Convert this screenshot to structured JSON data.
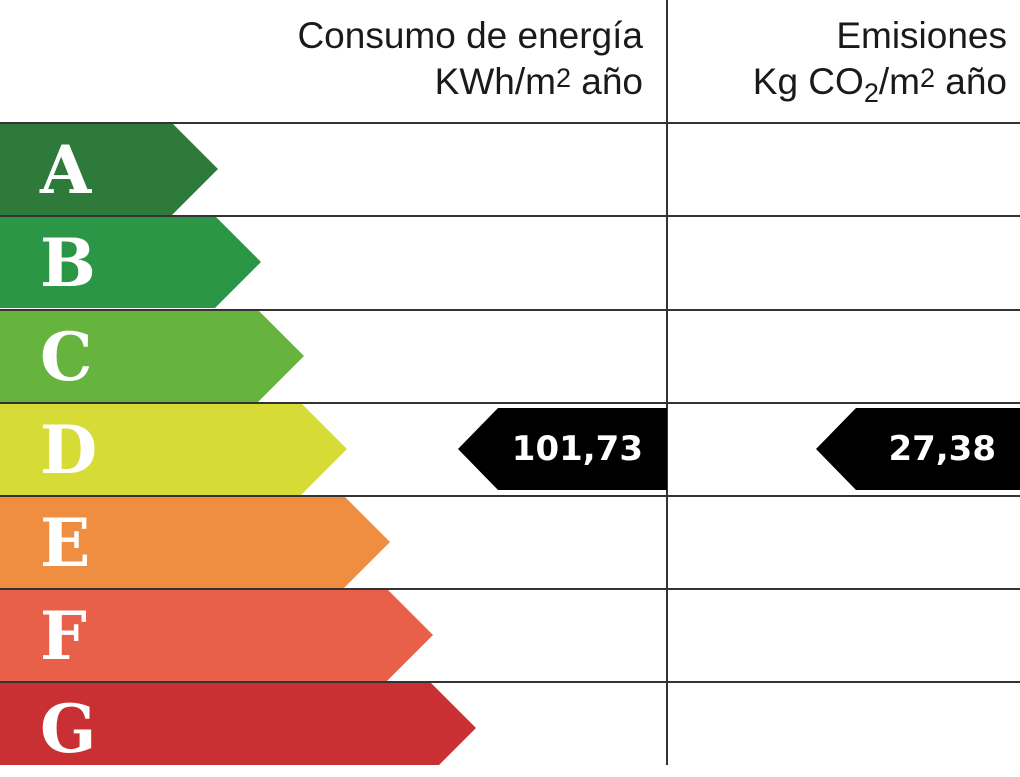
{
  "header": {
    "energy_title": "Consumo de energía",
    "energy_unit_prefix": "KWh/m",
    "energy_unit_sup": "2",
    "energy_unit_suffix": " año",
    "emissions_title": "Emisiones",
    "emissions_unit_prefix": "Kg CO",
    "emissions_unit_sub": "2",
    "emissions_unit_mid": "/m",
    "emissions_unit_sup": "2",
    "emissions_unit_suffix": " año"
  },
  "bands": [
    {
      "letter": "A",
      "color": "#2d7a3a"
    },
    {
      "letter": "B",
      "color": "#2a9646"
    },
    {
      "letter": "C",
      "color": "#66b33e"
    },
    {
      "letter": "D",
      "color": "#d7db35"
    },
    {
      "letter": "E",
      "color": "#ef8d40"
    },
    {
      "letter": "F",
      "color": "#e85f4a"
    },
    {
      "letter": "G",
      "color": "#c93034"
    }
  ],
  "rating": {
    "energy_value": "101,73",
    "emissions_value": "27,38",
    "class": "D"
  },
  "chart_data": {
    "type": "table",
    "title": "Energy efficiency rating",
    "columns": [
      "Consumo de energía KWh/m2 año",
      "Emisiones Kg CO2/m2 año"
    ],
    "categories": [
      "A",
      "B",
      "C",
      "D",
      "E",
      "F",
      "G"
    ],
    "category_colors": [
      "#2d7a3a",
      "#2a9646",
      "#66b33e",
      "#d7db35",
      "#ef8d40",
      "#e85f4a",
      "#c93034"
    ],
    "values": {
      "energy_consumption": {
        "class": "D",
        "value": 101.73,
        "label": "101,73"
      },
      "emissions": {
        "class": "D",
        "value": 27.38,
        "label": "27,38"
      }
    }
  }
}
